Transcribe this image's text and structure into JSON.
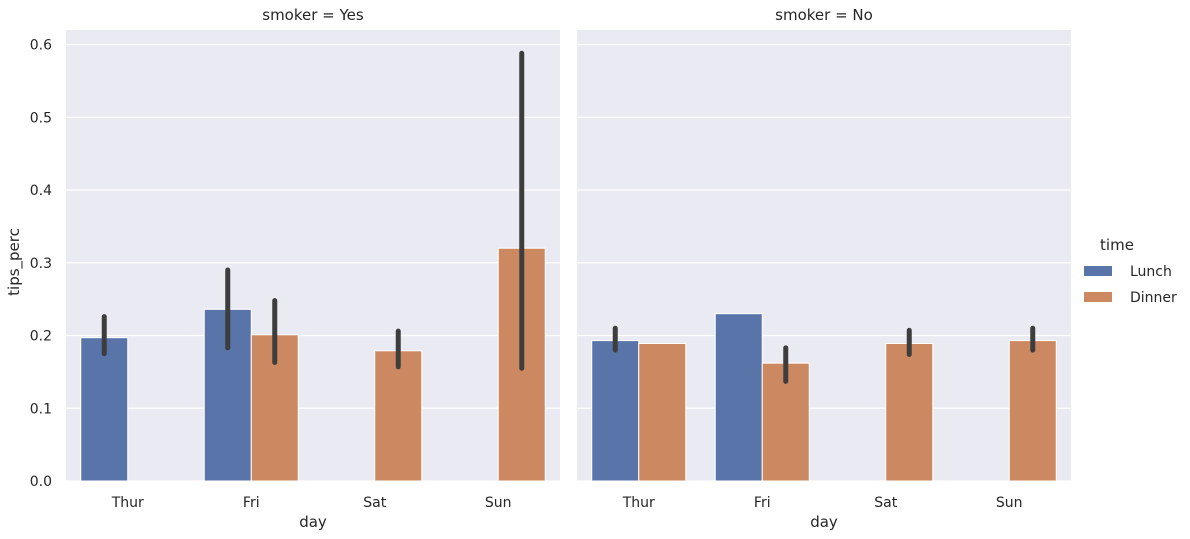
{
  "chart_data": {
    "type": "bar",
    "ylabel": "tips_perc",
    "xlabel": "day",
    "ylim": [
      0,
      0.62
    ],
    "yticks": [
      "0.0",
      "0.1",
      "0.2",
      "0.3",
      "0.4",
      "0.5",
      "0.6"
    ],
    "categories": [
      "Thur",
      "Fri",
      "Sat",
      "Sun"
    ],
    "grid": true,
    "legend": {
      "title": "time",
      "placement": "right",
      "entries": [
        {
          "name": "Lunch",
          "color": "#5874a8"
        },
        {
          "name": "Dinner",
          "color": "#cc8860"
        }
      ]
    },
    "panels": [
      {
        "title": "smoker = Yes",
        "series": [
          {
            "name": "Lunch",
            "values": [
              0.197,
              0.236,
              null,
              null
            ],
            "ci_low": [
              0.175,
              0.183,
              null,
              null
            ],
            "ci_high": [
              0.226,
              0.29,
              null,
              null
            ]
          },
          {
            "name": "Dinner",
            "values": [
              null,
              0.201,
              0.179,
              0.32
            ],
            "ci_low": [
              null,
              0.163,
              0.157,
              0.155
            ],
            "ci_high": [
              null,
              0.248,
              0.206,
              0.588
            ]
          }
        ]
      },
      {
        "title": "smoker = No",
        "series": [
          {
            "name": "Lunch",
            "values": [
              0.193,
              0.23,
              null,
              null
            ],
            "ci_low": [
              0.18,
              null,
              null,
              null
            ],
            "ci_high": [
              0.21,
              null,
              null,
              null
            ]
          },
          {
            "name": "Dinner",
            "values": [
              0.189,
              0.162,
              0.189,
              0.193
            ],
            "ci_low": [
              null,
              0.137,
              0.174,
              0.18
            ],
            "ci_high": [
              null,
              0.183,
              0.207,
              0.21
            ]
          }
        ]
      }
    ]
  }
}
